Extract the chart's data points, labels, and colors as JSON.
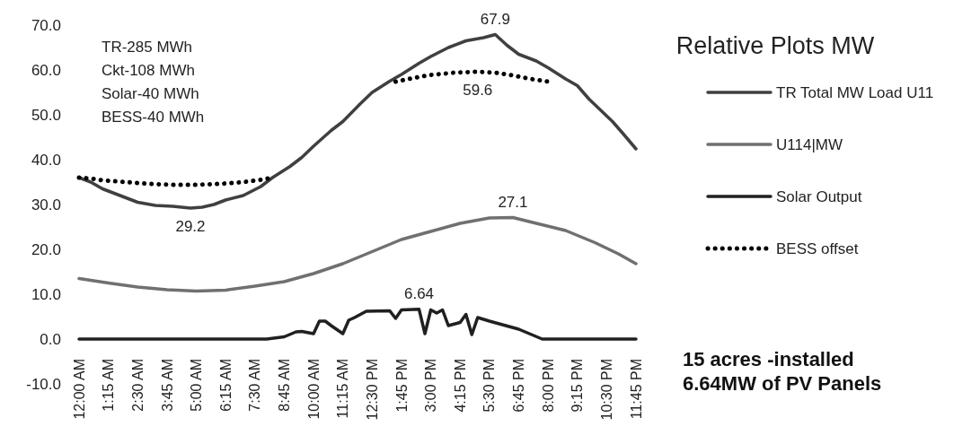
{
  "chart_data": {
    "type": "line",
    "title": "Relative Plots MW",
    "xlim": [
      0,
      23.75
    ],
    "xticks": [
      {
        "value": 0,
        "label": "12:00 AM"
      },
      {
        "value": 1.25,
        "label": "1:15 AM"
      },
      {
        "value": 2.5,
        "label": "2:30 AM"
      },
      {
        "value": 3.75,
        "label": "3:45 AM"
      },
      {
        "value": 5,
        "label": "5:00 AM"
      },
      {
        "value": 6.25,
        "label": "6:15 AM"
      },
      {
        "value": 7.5,
        "label": "7:30 AM"
      },
      {
        "value": 8.75,
        "label": "8:45 AM"
      },
      {
        "value": 10,
        "label": "10:00 AM"
      },
      {
        "value": 11.25,
        "label": "11:15 AM"
      },
      {
        "value": 12.5,
        "label": "12:30 PM"
      },
      {
        "value": 13.75,
        "label": "1:45 PM"
      },
      {
        "value": 15,
        "label": "3:00 PM"
      },
      {
        "value": 16.25,
        "label": "4:15 PM"
      },
      {
        "value": 17.5,
        "label": "5:30 PM"
      },
      {
        "value": 18.75,
        "label": "6:45 PM"
      },
      {
        "value": 20,
        "label": "8:00 PM"
      },
      {
        "value": 21.25,
        "label": "9:15 PM"
      },
      {
        "value": 22.5,
        "label": "10:30 PM"
      },
      {
        "value": 23.75,
        "label": "11:45 PM"
      }
    ],
    "ylim": [
      -10,
      70
    ],
    "yticks": [
      {
        "value": -10,
        "label": "-10.0"
      },
      {
        "value": 0,
        "label": "0.0"
      },
      {
        "value": 10,
        "label": "10.0"
      },
      {
        "value": 20,
        "label": "20.0"
      },
      {
        "value": 30,
        "label": "30.0"
      },
      {
        "value": 40,
        "label": "40.0"
      },
      {
        "value": 50,
        "label": "50.0"
      },
      {
        "value": 60,
        "label": "60.0"
      },
      {
        "value": 70,
        "label": "70.0"
      }
    ],
    "grid": false,
    "legend": "right",
    "marker": "none",
    "series": [
      {
        "name": "TR Total MW Load U11",
        "color": "#404040",
        "line_style": "solid",
        "x": [
          0,
          0.5,
          1,
          1.75,
          2.5,
          3.25,
          4,
          4.75,
          5.25,
          5.75,
          6.25,
          7,
          7.75,
          8.25,
          9,
          9.5,
          10,
          10.75,
          11.25,
          12,
          12.5,
          13.25,
          13.75,
          14.5,
          15,
          15.75,
          16.5,
          17.25,
          17.75,
          18.25,
          18.75,
          19.5,
          20,
          20.75,
          21.25,
          21.75,
          22.25,
          22.75,
          23.25,
          23.75
        ],
        "values": [
          36,
          35,
          33.5,
          32,
          30.5,
          29.8,
          29.6,
          29.2,
          29.4,
          30,
          31,
          32,
          34,
          36,
          38.5,
          40.5,
          43,
          46.5,
          48.5,
          52.5,
          55,
          57.5,
          59,
          61.5,
          63,
          65,
          66.5,
          67.2,
          67.9,
          65.5,
          63.5,
          62,
          60.5,
          58,
          56.5,
          53.5,
          51,
          48.5,
          45.5,
          42.4
        ]
      },
      {
        "name": "U114|MW",
        "color": "#707070",
        "line_style": "solid",
        "x": [
          0,
          1.25,
          2.5,
          3.75,
          5,
          6.25,
          7.5,
          8.75,
          10,
          11.25,
          12.5,
          13.75,
          15,
          16.25,
          17.5,
          18.5,
          19.5,
          20.75,
          22,
          23,
          23.75
        ],
        "values": [
          13.5,
          12.5,
          11.6,
          11,
          10.7,
          10.9,
          11.8,
          12.8,
          14.6,
          16.8,
          19.5,
          22.2,
          24,
          25.8,
          27,
          27.1,
          25.8,
          24.2,
          21.5,
          19,
          16.8
        ]
      },
      {
        "name": "Solar Output",
        "color": "#202020",
        "line_style": "solid",
        "x": [
          0,
          8,
          8.75,
          9.25,
          9.5,
          10,
          10.25,
          10.5,
          10.75,
          11.25,
          11.5,
          11.75,
          12.25,
          13.25,
          13.5,
          13.75,
          14.5,
          14.75,
          15,
          15.25,
          15.5,
          15.75,
          16.25,
          16.5,
          16.75,
          17,
          17.5,
          18.75,
          19.75,
          23.75
        ],
        "values": [
          0,
          0,
          0.5,
          1.6,
          1.7,
          1.2,
          4,
          4,
          3,
          1.2,
          4.2,
          4.8,
          6.2,
          6.3,
          4.6,
          6.5,
          6.64,
          1.2,
          6.5,
          5.8,
          6.5,
          3,
          3.7,
          5.5,
          1,
          4.8,
          4,
          2.2,
          0,
          0
        ]
      },
      {
        "name": "BESS offset",
        "color": "#000000",
        "line_style": "dotted",
        "x": [
          0,
          0.5,
          1,
          2,
          3,
          4,
          5,
          6,
          7,
          7.75,
          8.25,
          11,
          13.5,
          14.25,
          15,
          16,
          17,
          17.75,
          18.5,
          19.25,
          20.25
        ],
        "values": [
          36,
          35.8,
          35.4,
          35,
          34.6,
          34.4,
          34.4,
          34.6,
          35,
          35.5,
          36,
          null,
          57.4,
          58.2,
          58.9,
          59.4,
          59.6,
          59.4,
          58.8,
          58,
          57.2
        ]
      }
    ],
    "annotations": [
      {
        "text": "67.9",
        "x": 17.75,
        "y": 67.9
      },
      {
        "text": "59.6",
        "x": 17,
        "y": 59.6
      },
      {
        "text": "29.2",
        "x": 4.75,
        "y": 29.2
      },
      {
        "text": "27.1",
        "x": 18.5,
        "y": 27.1
      },
      {
        "text": "6.64",
        "x": 14.5,
        "y": 6.64
      },
      "TR-285 MWh",
      "Ckt-108 MWh",
      "Solar-40 MWh",
      "BESS-40 MWh",
      "15 acres -installed\n6.64MW of PV Panels"
    ]
  }
}
